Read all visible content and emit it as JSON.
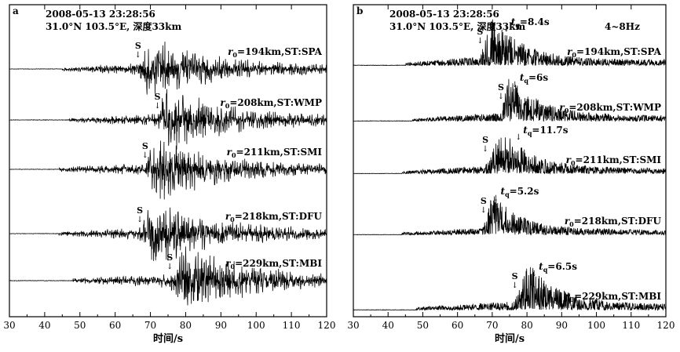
{
  "chart_data": [
    {
      "type": "line",
      "panel_label": "a",
      "event_date": "2008-05-13 23:28:56",
      "event_loc": "31.0°N 103.5°E, 深度33km",
      "xlabel": "时间/s",
      "xlim": [
        30,
        120
      ],
      "xticks": [
        "30",
        "40",
        "50",
        "60",
        "70",
        "80",
        "90",
        "100",
        "110",
        "120"
      ],
      "filter_label": "",
      "traces": [
        {
          "label_main": "=194km,ST:SPA",
          "r_symbol": "r",
          "r_sub": "0",
          "onset": 45,
          "s_time": 66.5,
          "s_mark": "S",
          "tq_text": "",
          "peak_time": 70,
          "amp": 0.95
        },
        {
          "label_main": "=208km,ST:WMP",
          "r_symbol": "r",
          "r_sub": "0",
          "onset": 47,
          "s_time": 72,
          "s_mark": "S",
          "tq_text": "",
          "peak_time": 74,
          "amp": 1.0
        },
        {
          "label_main": "=211km,ST:SMI",
          "r_symbol": "r",
          "r_sub": "0",
          "onset": 44,
          "s_time": 68.5,
          "s_mark": "S",
          "tq_text": "",
          "peak_time": 72,
          "amp": 1.0
        },
        {
          "label_main": "=218km,ST:DFU",
          "r_symbol": "r",
          "r_sub": "0",
          "onset": 44,
          "s_time": 67,
          "s_mark": "S",
          "tq_text": "",
          "peak_time": 71,
          "amp": 1.0
        },
        {
          "label_main": "=229km,ST:MBI",
          "r_symbol": "r",
          "r_sub": "0",
          "onset": 48,
          "s_time": 75.5,
          "s_mark": "S",
          "tq_text": "",
          "peak_time": 80,
          "amp": 1.1
        }
      ]
    },
    {
      "type": "line",
      "panel_label": "b",
      "event_date": "2008-05-13 23:28:56",
      "event_loc": "31.0°N 103.5°E, 深度33km",
      "xlabel": "时间/s",
      "xlim": [
        30,
        120
      ],
      "xticks": [
        "30",
        "40",
        "50",
        "60",
        "70",
        "80",
        "90",
        "100",
        "110",
        "120"
      ],
      "filter_label": "4~8Hz",
      "traces": [
        {
          "label_main": "=194km,ST:SPA",
          "r_symbol": "r",
          "r_sub": "0",
          "onset": 45,
          "s_time": 66.5,
          "s_mark": "S",
          "tq_t": "t",
          "tq_sub": "q",
          "tq_text": "=8.4s",
          "tq_time": 74.5,
          "peak_time": 70,
          "amp": 1.0
        },
        {
          "label_main": "=208km,ST:WMP",
          "r_symbol": "r",
          "r_sub": "0",
          "onset": 47,
          "s_time": 72.5,
          "s_mark": "S",
          "tq_t": "t",
          "tq_sub": "q",
          "tq_text": "=6s",
          "tq_time": 77,
          "peak_time": 75,
          "amp": 0.95
        },
        {
          "label_main": "=211km,ST:SMI",
          "r_symbol": "r",
          "r_sub": "0",
          "onset": 44,
          "s_time": 68,
          "s_mark": "S",
          "tq_t": "t",
          "tq_sub": "q",
          "tq_text": "=11.7s",
          "tq_time": 78,
          "peak_time": 73,
          "amp": 0.9
        },
        {
          "label_main": "=218km,ST:DFU",
          "r_symbol": "r",
          "r_sub": "0",
          "onset": 44,
          "s_time": 67.5,
          "s_mark": "S",
          "tq_t": "t",
          "tq_sub": "q",
          "tq_text": "=5.2s",
          "tq_time": 71.5,
          "peak_time": 70,
          "amp": 0.85
        },
        {
          "label_main": "=229km,ST:MBI",
          "r_symbol": "r",
          "r_sub": "0",
          "onset": 48,
          "s_time": 76.5,
          "s_mark": "S",
          "tq_t": "t",
          "tq_sub": "q",
          "tq_text": "=6.5s",
          "tq_time": 82.5,
          "peak_time": 80.5,
          "amp": 1.0
        }
      ]
    }
  ]
}
